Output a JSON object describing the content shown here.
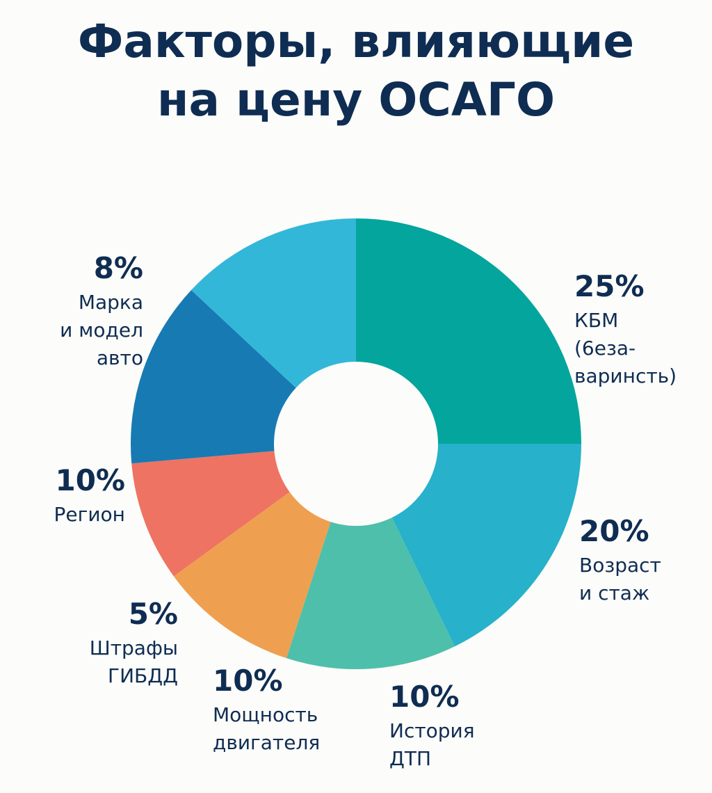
{
  "title_lines": [
    "Факторы, влияющие",
    "на цену ОСАГО"
  ],
  "chart_data": {
    "type": "pie",
    "title": "Факторы, влияющие на цену ОСАГО",
    "donut": true,
    "slices": [
      {
        "value": 25,
        "percent_label": "25%",
        "label_lines": [
          "КБМ",
          "(6еза-",
          "варинсть)"
        ],
        "color": "#04a59d"
      },
      {
        "value": 20,
        "percent_label": "20%",
        "label_lines": [
          "Возраст",
          "и стаж"
        ],
        "color": "#27b1ca"
      },
      {
        "value": 10,
        "percent_label": "10%",
        "label_lines": [
          "История",
          "ДТП"
        ],
        "color": "#4ebfaa"
      },
      {
        "value": 10,
        "percent_label": "10%",
        "label_lines": [
          "Мощность",
          "двигателя"
        ],
        "color": "#eea050"
      },
      {
        "value": 5,
        "percent_label": "5%",
        "label_lines": [
          "Штрафы",
          "ГИБДД"
        ],
        "color": "#ee7362"
      },
      {
        "value": 10,
        "percent_label": "10%",
        "label_lines": [
          "Регион"
        ],
        "color": "#177ab3"
      },
      {
        "value": 8,
        "percent_label": "8%",
        "label_lines": [
          "Марка",
          "и модел",
          "авто"
        ],
        "color": "#33b7d9"
      }
    ]
  }
}
